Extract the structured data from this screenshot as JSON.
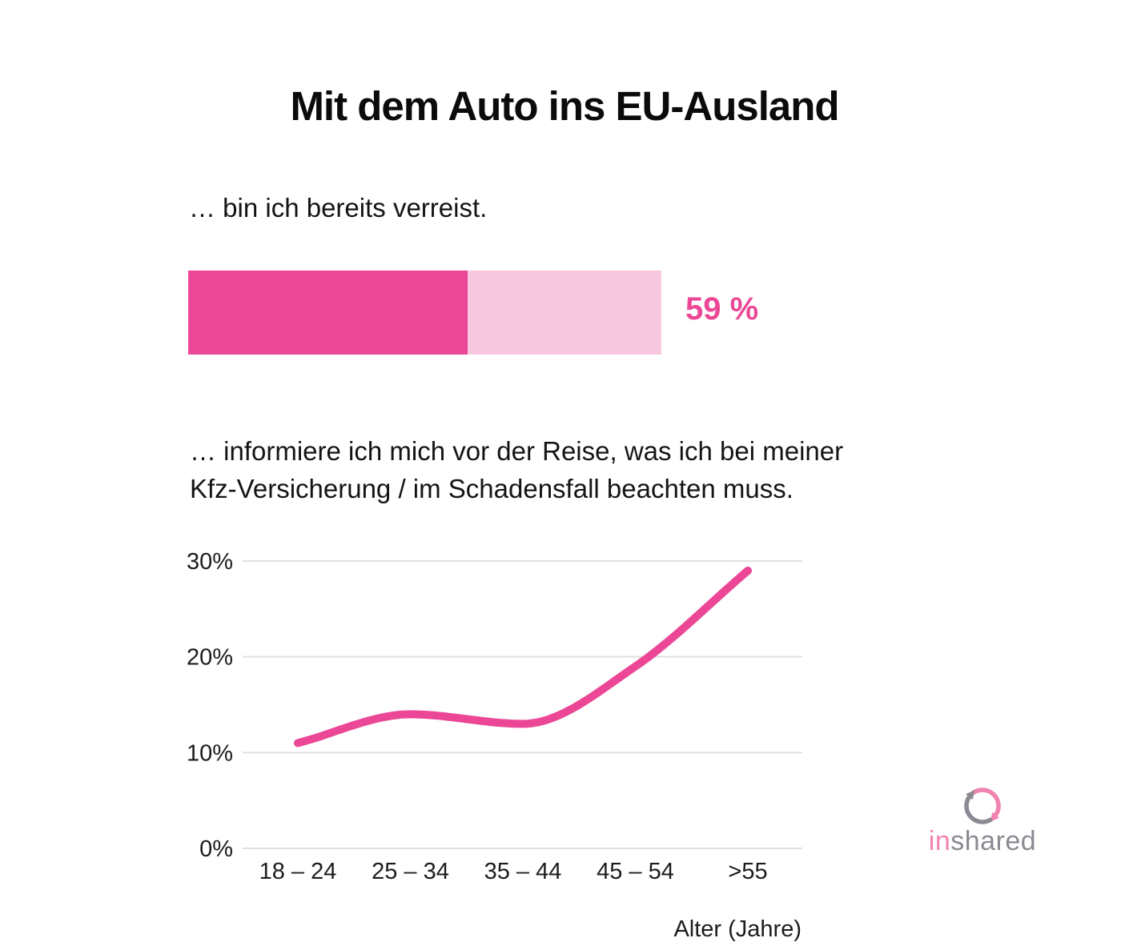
{
  "page": {
    "title": "Mit dem Auto ins EU-Ausland",
    "background_color": "#ffffff",
    "accent_color": "#ec4796"
  },
  "travelled_section": {
    "statement": "… bin ich bereits verreist.",
    "percent": 59,
    "percent_label": "59 %",
    "bar_filled_color": "#ec4796",
    "bar_remainder_color": "#f8c8de"
  },
  "inform_section": {
    "statement": "… informiere ich mich vor der Reise, was ich bei meiner\nKfz-Versicherung / im Schadensfall beachten muss."
  },
  "chart_data": {
    "type": "line",
    "title": "",
    "categories": [
      "18 – 24",
      "25 – 34",
      "35 – 44",
      "45 – 54",
      ">55"
    ],
    "values": [
      11,
      14,
      13,
      19,
      29
    ],
    "unit": "%",
    "xlabel": "Alter (Jahre)",
    "ylabel": "",
    "ylim": [
      0,
      30
    ],
    "yticks": [
      0,
      10,
      20,
      30
    ],
    "ytick_labels": [
      "0%",
      "10%",
      "20%",
      "30%"
    ],
    "grid": true,
    "legend": false,
    "smooth": true,
    "line_color": "#ec4796",
    "grid_color": "#e0e0e0"
  },
  "logo": {
    "name": "inshared",
    "text_primary": "in",
    "text_secondary": "shared",
    "primary_color": "#f183b0",
    "secondary_color": "#8b8a92"
  }
}
